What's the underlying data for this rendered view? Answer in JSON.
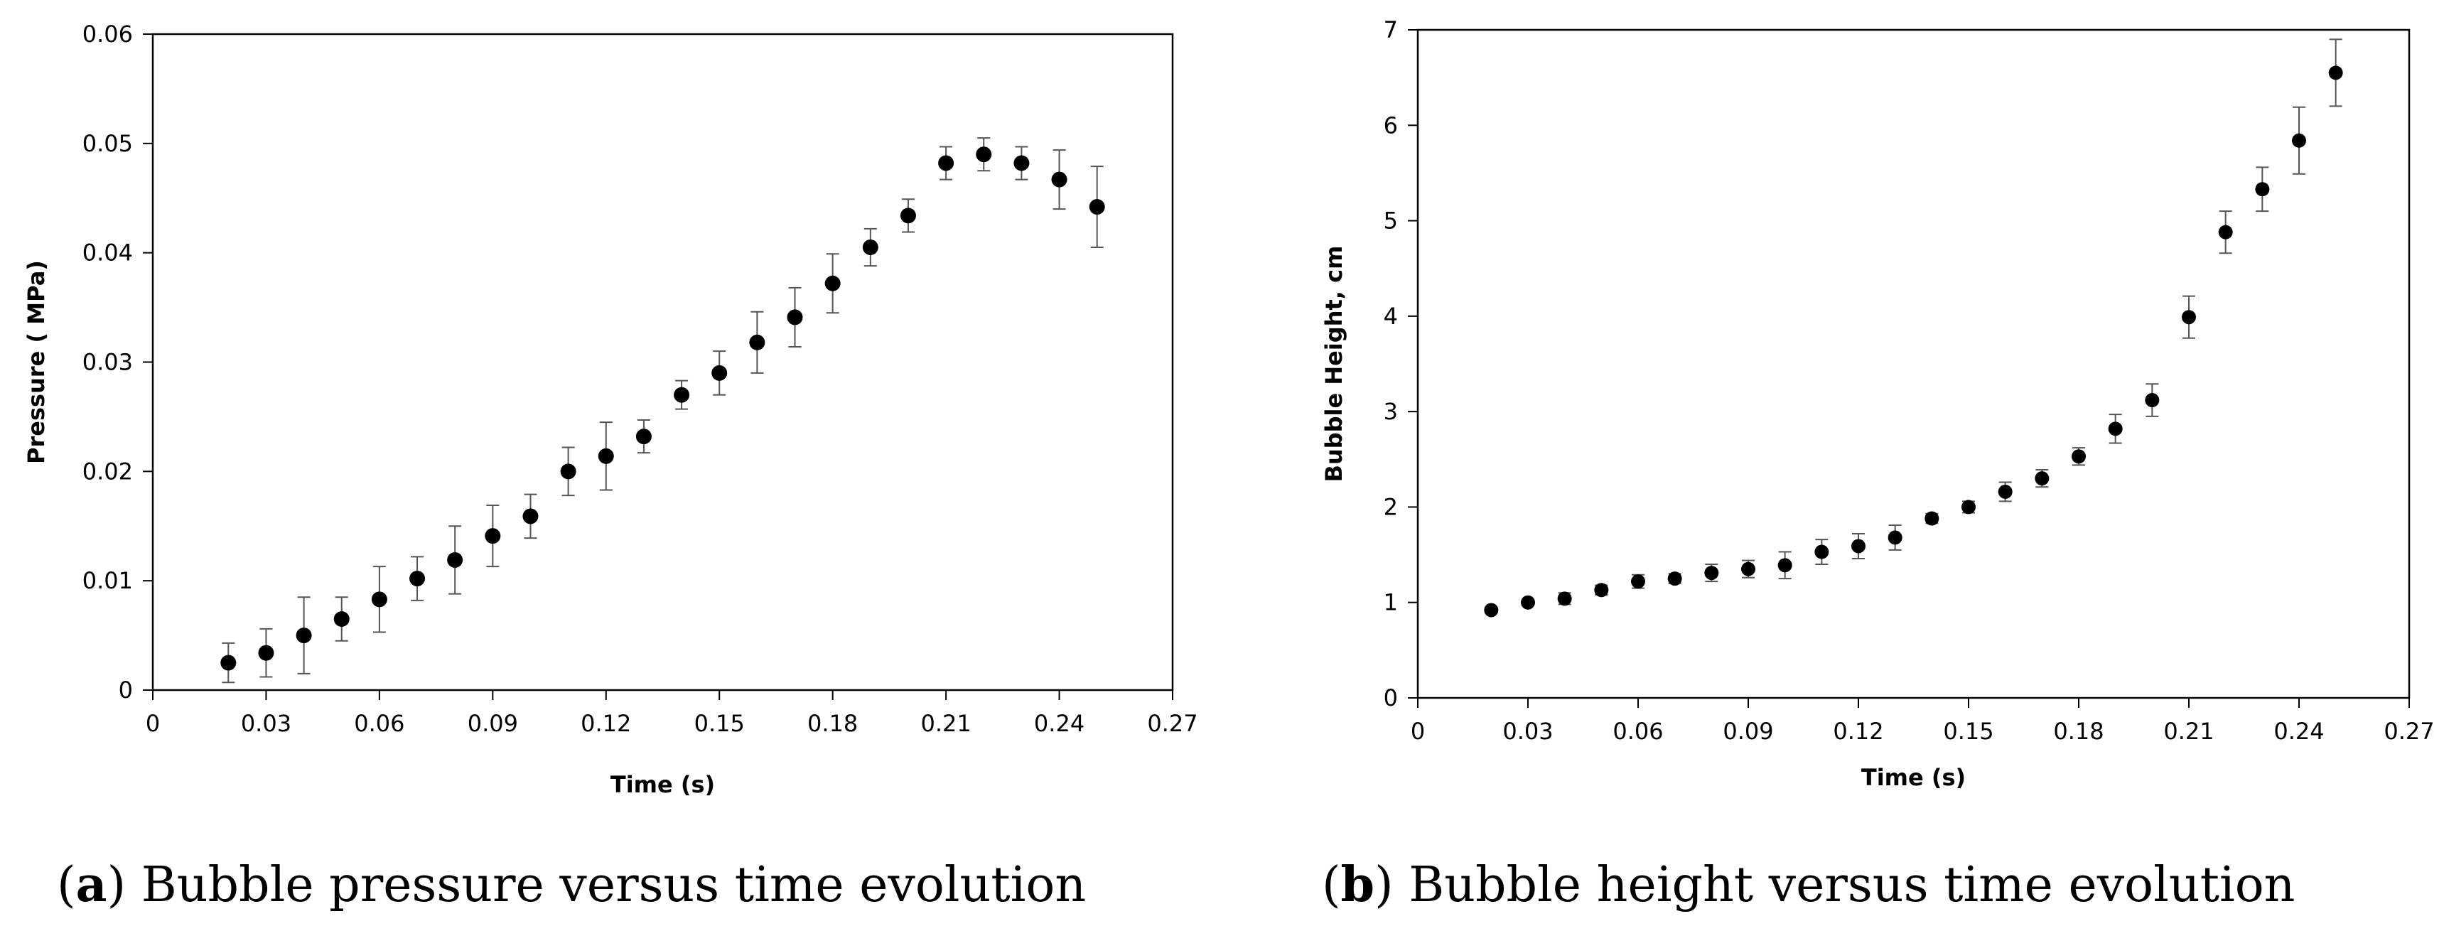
{
  "chart_data": [
    {
      "type": "scatter",
      "title": "",
      "caption": {
        "letter": "a",
        "text": "Bubble pressure versus time evolution"
      },
      "xlabel": "Time (s)",
      "ylabel": "Pressure ( MPa)",
      "xlim": [
        0,
        0.27
      ],
      "ylim": [
        0,
        0.06
      ],
      "xticks": [
        0,
        0.03,
        0.06,
        0.09,
        0.12,
        0.15,
        0.18,
        0.21,
        0.24,
        0.27
      ],
      "xtick_labels": [
        "0",
        "0.03",
        "0.06",
        "0.09",
        "0.12",
        "0.15",
        "0.18",
        "0.21",
        "0.24",
        "0.27"
      ],
      "yticks": [
        0,
        0.01,
        0.02,
        0.03,
        0.04,
        0.05,
        0.06
      ],
      "ytick_labels": [
        "0",
        "0.01",
        "0.02",
        "0.03",
        "0.04",
        "0.05",
        "0.06"
      ],
      "grid": false,
      "series": [
        {
          "name": "Pressure",
          "x": [
            0.02,
            0.03,
            0.04,
            0.05,
            0.06,
            0.07,
            0.08,
            0.09,
            0.1,
            0.11,
            0.12,
            0.13,
            0.14,
            0.15,
            0.16,
            0.17,
            0.18,
            0.19,
            0.2,
            0.21,
            0.22,
            0.23,
            0.24,
            0.25
          ],
          "y": [
            0.0025,
            0.0034,
            0.005,
            0.0065,
            0.0083,
            0.0102,
            0.0119,
            0.0141,
            0.0159,
            0.02,
            0.0214,
            0.0232,
            0.027,
            0.029,
            0.0318,
            0.0341,
            0.0372,
            0.0405,
            0.0434,
            0.0482,
            0.049,
            0.0482,
            0.0467,
            0.0442
          ],
          "error": [
            0.0018,
            0.0022,
            0.0035,
            0.002,
            0.003,
            0.002,
            0.0031,
            0.0028,
            0.002,
            0.0022,
            0.0031,
            0.0015,
            0.0013,
            0.002,
            0.0028,
            0.0027,
            0.0027,
            0.0017,
            0.0015,
            0.0015,
            0.0015,
            0.0015,
            0.0027,
            0.0037
          ]
        }
      ]
    },
    {
      "type": "scatter",
      "title": "",
      "caption": {
        "letter": "b",
        "text": "Bubble height versus time evolution"
      },
      "xlabel": "Time (s)",
      "ylabel": "Bubble Height, cm",
      "xlim": [
        0,
        0.27
      ],
      "ylim": [
        0,
        7
      ],
      "xticks": [
        0,
        0.03,
        0.06,
        0.09,
        0.12,
        0.15,
        0.18,
        0.21,
        0.24,
        0.27
      ],
      "xtick_labels": [
        "0",
        "0.03",
        "0.06",
        "0.09",
        "0.12",
        "0.15",
        "0.18",
        "0.21",
        "0.24",
        "0.27"
      ],
      "yticks": [
        0,
        1,
        2,
        3,
        4,
        5,
        6,
        7
      ],
      "ytick_labels": [
        "0",
        "1",
        "2",
        "3",
        "4",
        "5",
        "6",
        "7"
      ],
      "grid": false,
      "series": [
        {
          "name": "Bubble Height",
          "x": [
            0.02,
            0.03,
            0.04,
            0.05,
            0.06,
            0.07,
            0.08,
            0.09,
            0.1,
            0.11,
            0.12,
            0.13,
            0.14,
            0.15,
            0.16,
            0.17,
            0.18,
            0.19,
            0.2,
            0.21,
            0.22,
            0.23,
            0.24,
            0.25
          ],
          "y": [
            0.92,
            1.0,
            1.04,
            1.13,
            1.22,
            1.25,
            1.31,
            1.35,
            1.39,
            1.53,
            1.59,
            1.68,
            1.88,
            2.0,
            2.16,
            2.3,
            2.53,
            2.82,
            3.12,
            3.99,
            4.88,
            5.33,
            5.84,
            6.55
          ],
          "error": [
            0.03,
            0.03,
            0.06,
            0.05,
            0.07,
            0.05,
            0.09,
            0.09,
            0.14,
            0.13,
            0.13,
            0.13,
            0.05,
            0.06,
            0.1,
            0.09,
            0.09,
            0.15,
            0.17,
            0.22,
            0.22,
            0.23,
            0.35,
            0.35
          ]
        }
      ]
    }
  ]
}
